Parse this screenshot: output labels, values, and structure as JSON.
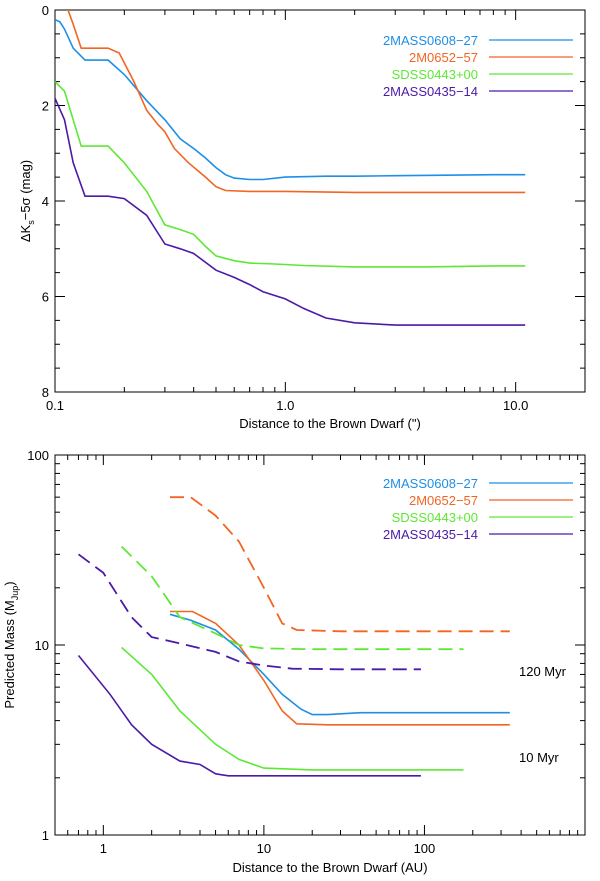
{
  "chart_data": [
    {
      "type": "line",
      "xlabel": "Distance to the Brown Dwarf (\")",
      "ylabel_main": "ΔK",
      "ylabel_sub": "s",
      "ylabel_rest": "−5σ (mag)",
      "xscale": "log",
      "xlim": [
        0.1,
        20
      ],
      "ylim": [
        8,
        0
      ],
      "inverted_y": true,
      "x_tick_labels": [
        "0.1",
        "1.0",
        "10.0"
      ],
      "x_tick_values": [
        0.1,
        1.0,
        10.0
      ],
      "y_tick_values": [
        0,
        2,
        4,
        6,
        8
      ],
      "y_tick_labels": [
        "0",
        "2",
        "4",
        "6",
        "8"
      ],
      "legend_position": "top-right",
      "series": [
        {
          "name": "2MASS0608−27",
          "color": "#1f8fe6",
          "points": [
            [
              0.1,
              0.2
            ],
            [
              0.105,
              0.25
            ],
            [
              0.11,
              0.4
            ],
            [
              0.12,
              0.8
            ],
            [
              0.135,
              1.05
            ],
            [
              0.17,
              1.05
            ],
            [
              0.2,
              1.35
            ],
            [
              0.25,
              1.9
            ],
            [
              0.3,
              2.3
            ],
            [
              0.35,
              2.7
            ],
            [
              0.4,
              2.9
            ],
            [
              0.45,
              3.1
            ],
            [
              0.5,
              3.3
            ],
            [
              0.55,
              3.45
            ],
            [
              0.6,
              3.52
            ],
            [
              0.7,
              3.55
            ],
            [
              0.8,
              3.55
            ],
            [
              1.0,
              3.5
            ],
            [
              1.5,
              3.48
            ],
            [
              2.0,
              3.48
            ],
            [
              3.0,
              3.47
            ],
            [
              5.0,
              3.46
            ],
            [
              8.0,
              3.45
            ],
            [
              11.0,
              3.45
            ]
          ]
        },
        {
          "name": "2M0652−57",
          "color": "#f26522",
          "points": [
            [
              0.1,
              -0.6
            ],
            [
              0.11,
              -0.2
            ],
            [
              0.12,
              0.3
            ],
            [
              0.13,
              0.8
            ],
            [
              0.17,
              0.8
            ],
            [
              0.19,
              0.9
            ],
            [
              0.22,
              1.5
            ],
            [
              0.25,
              2.1
            ],
            [
              0.28,
              2.4
            ],
            [
              0.3,
              2.55
            ],
            [
              0.33,
              2.9
            ],
            [
              0.38,
              3.2
            ],
            [
              0.45,
              3.5
            ],
            [
              0.5,
              3.7
            ],
            [
              0.55,
              3.78
            ],
            [
              0.7,
              3.8
            ],
            [
              1.0,
              3.8
            ],
            [
              2.0,
              3.82
            ],
            [
              4.0,
              3.82
            ],
            [
              8.0,
              3.82
            ],
            [
              11.0,
              3.82
            ]
          ]
        },
        {
          "name": "SDSS0443+00",
          "color": "#5ee835",
          "points": [
            [
              0.1,
              1.5
            ],
            [
              0.11,
              1.7
            ],
            [
              0.12,
              2.3
            ],
            [
              0.13,
              2.85
            ],
            [
              0.17,
              2.85
            ],
            [
              0.2,
              3.2
            ],
            [
              0.25,
              3.8
            ],
            [
              0.3,
              4.5
            ],
            [
              0.35,
              4.6
            ],
            [
              0.4,
              4.7
            ],
            [
              0.45,
              4.95
            ],
            [
              0.5,
              5.15
            ],
            [
              0.6,
              5.25
            ],
            [
              0.7,
              5.3
            ],
            [
              0.9,
              5.32
            ],
            [
              1.2,
              5.35
            ],
            [
              2.0,
              5.38
            ],
            [
              4.0,
              5.38
            ],
            [
              8.0,
              5.36
            ],
            [
              11.0,
              5.36
            ]
          ]
        },
        {
          "name": "2MASS0435−14",
          "color": "#4b1aa8",
          "points": [
            [
              0.1,
              1.85
            ],
            [
              0.11,
              2.3
            ],
            [
              0.12,
              3.2
            ],
            [
              0.135,
              3.9
            ],
            [
              0.17,
              3.9
            ],
            [
              0.2,
              3.95
            ],
            [
              0.25,
              4.3
            ],
            [
              0.3,
              4.9
            ],
            [
              0.35,
              5.0
            ],
            [
              0.4,
              5.1
            ],
            [
              0.5,
              5.45
            ],
            [
              0.6,
              5.6
            ],
            [
              0.7,
              5.75
            ],
            [
              0.8,
              5.9
            ],
            [
              1.0,
              6.05
            ],
            [
              1.2,
              6.25
            ],
            [
              1.5,
              6.45
            ],
            [
              2.0,
              6.55
            ],
            [
              3.0,
              6.6
            ],
            [
              5.0,
              6.6
            ],
            [
              8.0,
              6.6
            ],
            [
              11.0,
              6.6
            ]
          ]
        }
      ]
    },
    {
      "type": "line",
      "xlabel": "Distance to the Brown Dwarf (AU)",
      "ylabel_main": "Predicted Mass (M",
      "ylabel_sub": "Jup",
      "ylabel_rest": ")",
      "xscale": "log",
      "yscale": "log",
      "xlim": [
        0.5,
        1000
      ],
      "ylim": [
        1,
        100
      ],
      "x_tick_labels": [
        "1",
        "10",
        "100"
      ],
      "x_tick_values": [
        1,
        10,
        100
      ],
      "y_tick_values": [
        1,
        10,
        100
      ],
      "y_tick_labels": [
        "1",
        "10",
        "100"
      ],
      "legend_position": "top-right",
      "annotations": [
        "120 Myr",
        "10 Myr"
      ],
      "series": [
        {
          "name": "2MASS0608−27",
          "color": "#1f8fe6",
          "solid": [
            [
              2.6,
              14.5
            ],
            [
              3.5,
              13.5
            ],
            [
              5,
              12
            ],
            [
              7,
              9.5
            ],
            [
              10,
              7
            ],
            [
              13,
              5.5
            ],
            [
              17,
              4.6
            ],
            [
              20,
              4.3
            ],
            [
              25,
              4.3
            ],
            [
              40,
              4.4
            ],
            [
              100,
              4.4
            ],
            [
              200,
              4.4
            ],
            [
              340,
              4.4
            ]
          ],
          "dashed": []
        },
        {
          "name": "2M0652−57",
          "color": "#f26522",
          "solid": [
            [
              2.6,
              15
            ],
            [
              3.6,
              15
            ],
            [
              5,
              13
            ],
            [
              7,
              10
            ],
            [
              10,
              6.5
            ],
            [
              13,
              4.5
            ],
            [
              16,
              3.85
            ],
            [
              25,
              3.8
            ],
            [
              50,
              3.8
            ],
            [
              100,
              3.8
            ],
            [
              200,
              3.8
            ],
            [
              340,
              3.8
            ]
          ],
          "dashed": [
            [
              2.6,
              60
            ],
            [
              3.5,
              60
            ],
            [
              5,
              48
            ],
            [
              7,
              35
            ],
            [
              10,
              20
            ],
            [
              13,
              13
            ],
            [
              16,
              12
            ],
            [
              30,
              11.8
            ],
            [
              100,
              11.8
            ],
            [
              340,
              11.8
            ]
          ]
        },
        {
          "name": "SDSS0443+00",
          "color": "#5ee835",
          "solid": [
            [
              1.3,
              9.7
            ],
            [
              2,
              7
            ],
            [
              3,
              4.5
            ],
            [
              5,
              3
            ],
            [
              7,
              2.5
            ],
            [
              10,
              2.25
            ],
            [
              20,
              2.2
            ],
            [
              50,
              2.2
            ],
            [
              100,
              2.2
            ],
            [
              175,
              2.2
            ]
          ],
          "dashed": [
            [
              1.3,
              33
            ],
            [
              2,
              23
            ],
            [
              3,
              14
            ],
            [
              5,
              11.5
            ],
            [
              7,
              10
            ],
            [
              10,
              9.6
            ],
            [
              20,
              9.5
            ],
            [
              50,
              9.5
            ],
            [
              100,
              9.5
            ],
            [
              175,
              9.5
            ]
          ]
        },
        {
          "name": "2MASS0435−14",
          "color": "#4b1aa8",
          "solid": [
            [
              0.7,
              8.8
            ],
            [
              1.1,
              5.5
            ],
            [
              1.5,
              3.8
            ],
            [
              2,
              3
            ],
            [
              3,
              2.45
            ],
            [
              4,
              2.35
            ],
            [
              5,
              2.1
            ],
            [
              6,
              2.05
            ],
            [
              10,
              2.05
            ],
            [
              30,
              2.05
            ],
            [
              95,
              2.05
            ]
          ],
          "dashed": [
            [
              0.7,
              30
            ],
            [
              1,
              24
            ],
            [
              1.5,
              14
            ],
            [
              2,
              11
            ],
            [
              3,
              10.2
            ],
            [
              5,
              9.2
            ],
            [
              7,
              8.2
            ],
            [
              10,
              7.8
            ],
            [
              15,
              7.5
            ],
            [
              30,
              7.45
            ],
            [
              95,
              7.45
            ]
          ]
        }
      ]
    }
  ]
}
